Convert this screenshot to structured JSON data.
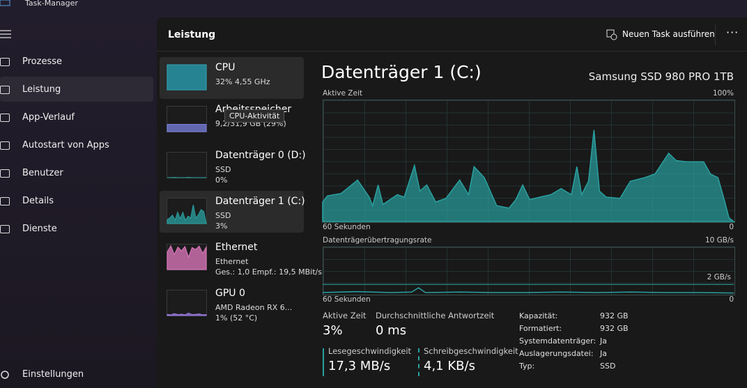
{
  "window_title": "Task-Manager",
  "nav": [
    "Prozesse",
    "Leistung",
    "App-Verlauf",
    "Autostart von Apps",
    "Benutzer",
    "Details",
    "Dienste"
  ],
  "settings": "Einstellungen",
  "header": {
    "title": "Leistung",
    "action": "Neuen Task ausführen"
  },
  "tooltip": "CPU-Aktivität",
  "devices": [
    {
      "name": "CPU",
      "lines": [
        "32% 4,55 GHz"
      ],
      "color": "#2aa6b8",
      "graph": [
        100,
        100,
        100,
        100,
        100,
        100,
        100,
        100,
        100,
        100,
        100,
        100
      ]
    },
    {
      "name": "Arbeitsspeicher",
      "lines": [
        "9,2/31,9 GB (29%)"
      ],
      "color": "#7a80e0",
      "graph": [
        29,
        29,
        29,
        29,
        29,
        29,
        29,
        29,
        29,
        29,
        29,
        29
      ]
    },
    {
      "name": "Datenträger 0 (D:)",
      "lines": [
        "SSD",
        "0%"
      ],
      "color": "#2aa0a0",
      "graph": [
        0,
        0,
        1,
        0,
        0,
        0,
        1,
        0,
        0,
        0,
        0,
        0
      ]
    },
    {
      "name": "Datenträger 1 (C:)",
      "lines": [
        "SSD",
        "3%"
      ],
      "color": "#2aa0a0",
      "graph": [
        16,
        23,
        34,
        14,
        46,
        20,
        45,
        13,
        30,
        22,
        75,
        22,
        36,
        56,
        49,
        3
      ]
    },
    {
      "name": "Ethernet",
      "lines": [
        "Ethernet",
        "Ges.: 1,0 Empf.: 19,5 MBit/s"
      ],
      "color": "#e27ac0",
      "graph": [
        70,
        95,
        60,
        90,
        75,
        92,
        50,
        88,
        80,
        94,
        65,
        90
      ]
    },
    {
      "name": "GPU 0",
      "lines": [
        "AMD Radeon RX 6...",
        "1% (52 °C)"
      ],
      "color": "#9a7ae0",
      "graph": [
        5,
        3,
        8,
        4,
        6,
        3,
        10,
        4,
        5,
        7,
        3,
        4
      ]
    }
  ],
  "graph_ylim": [
    0,
    100
  ],
  "detail": {
    "title": "Datenträger 1 (C:)",
    "model": "Samsung SSD 980 PRO 1TB",
    "stats": [
      {
        "label": "Aktive Zeit",
        "value": "3%"
      },
      {
        "label": "Durchschnittliche Antwortzeit",
        "value": "0 ms"
      },
      {
        "label": "Lesegeschwindigkeit",
        "value": "17,3 MB/s"
      },
      {
        "label": "Schreibgeschwindigkeit",
        "value": "4,1 KB/s"
      }
    ],
    "properties": [
      [
        "Kapazität:",
        "932 GB"
      ],
      [
        "Formatiert:",
        "932 GB"
      ],
      [
        "Systemdatenträger:",
        "Ja"
      ],
      [
        "Auslagerungsdatei:",
        "Ja"
      ],
      [
        "Typ:",
        "SSD"
      ]
    ]
  },
  "chart_data": [
    {
      "type": "area",
      "title": "Aktive Zeit",
      "max_label": "100%",
      "x_label": "60 Sekunden",
      "min_label": "0",
      "xlim": [
        60,
        0
      ],
      "ylim": [
        0,
        100
      ],
      "color": "#2aa0a0",
      "x": [
        60,
        59.3,
        57.3,
        54.9,
        53.2,
        52.7,
        51.9,
        51.2,
        49.1,
        48.1,
        46.6,
        45.8,
        44.8,
        43.5,
        42.0,
        40.0,
        38.7,
        37.9,
        36.4,
        34.6,
        32.8,
        31.8,
        30.8,
        29.8,
        28.3,
        26.7,
        25.2,
        23.7,
        22.9,
        22.2,
        21.2,
        20.4,
        19.6,
        18.6,
        16.6,
        15.1,
        13.0,
        11.5,
        9.5,
        8.4,
        6.9,
        5.4,
        4.4,
        3.4,
        2.3,
        1.3,
        0.7,
        0
      ],
      "values": [
        16,
        21,
        23,
        34,
        20,
        13,
        30,
        14,
        22,
        20,
        46,
        25,
        30,
        16,
        19,
        34,
        22,
        45,
        36,
        13,
        11,
        18,
        30,
        18,
        20,
        22,
        27,
        22,
        45,
        22,
        33,
        75,
        25,
        20,
        19,
        33,
        36,
        39,
        56,
        50,
        49,
        49,
        49,
        39,
        36,
        16,
        3,
        0
      ]
    },
    {
      "type": "line",
      "title": "Datenträgerübertragungsrate",
      "max_label": "10 GB/s",
      "x_label": "60 Sekunden",
      "min_label": "0",
      "xlim": [
        60,
        0
      ],
      "ylim": [
        0,
        10
      ],
      "color": "#2aa0a0",
      "yticks": [
        {
          "value": 2,
          "label": "2 GB/s"
        }
      ],
      "x": [
        60,
        55,
        50,
        47,
        46,
        45,
        40,
        35,
        30,
        25,
        20,
        15,
        10,
        5,
        0
      ],
      "values": [
        0.3,
        0.5,
        0.3,
        0.4,
        1.3,
        0.3,
        0.4,
        0.3,
        0.3,
        0.4,
        0.3,
        0.4,
        0.3,
        0.3,
        0.2
      ]
    }
  ]
}
